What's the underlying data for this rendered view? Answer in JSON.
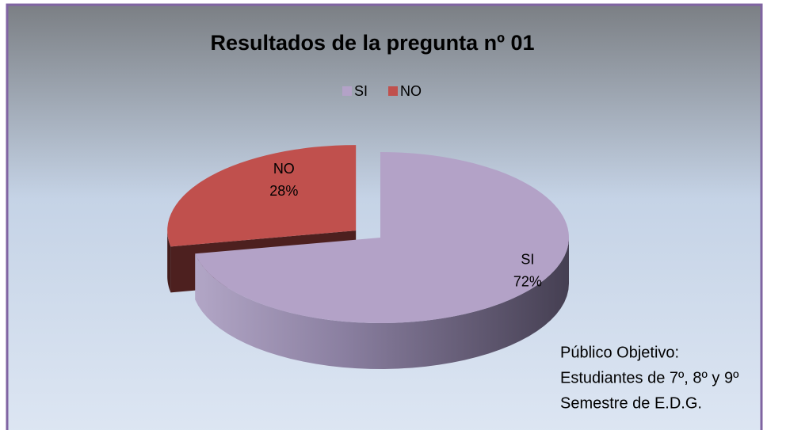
{
  "chart_data": {
    "type": "pie",
    "title": "Resultados  de la pregunta nº  01",
    "categories": [
      "SI",
      "NO"
    ],
    "values": [
      72,
      28
    ],
    "value_labels": [
      "72%",
      "28%"
    ],
    "colors": [
      "#b3a2c7",
      "#c0504d"
    ],
    "legend": "top",
    "annotation": [
      "Público Objetivo:",
      "Estudiantes de 7º, 8º y 9º",
      "Semestre de E.D.G."
    ]
  }
}
